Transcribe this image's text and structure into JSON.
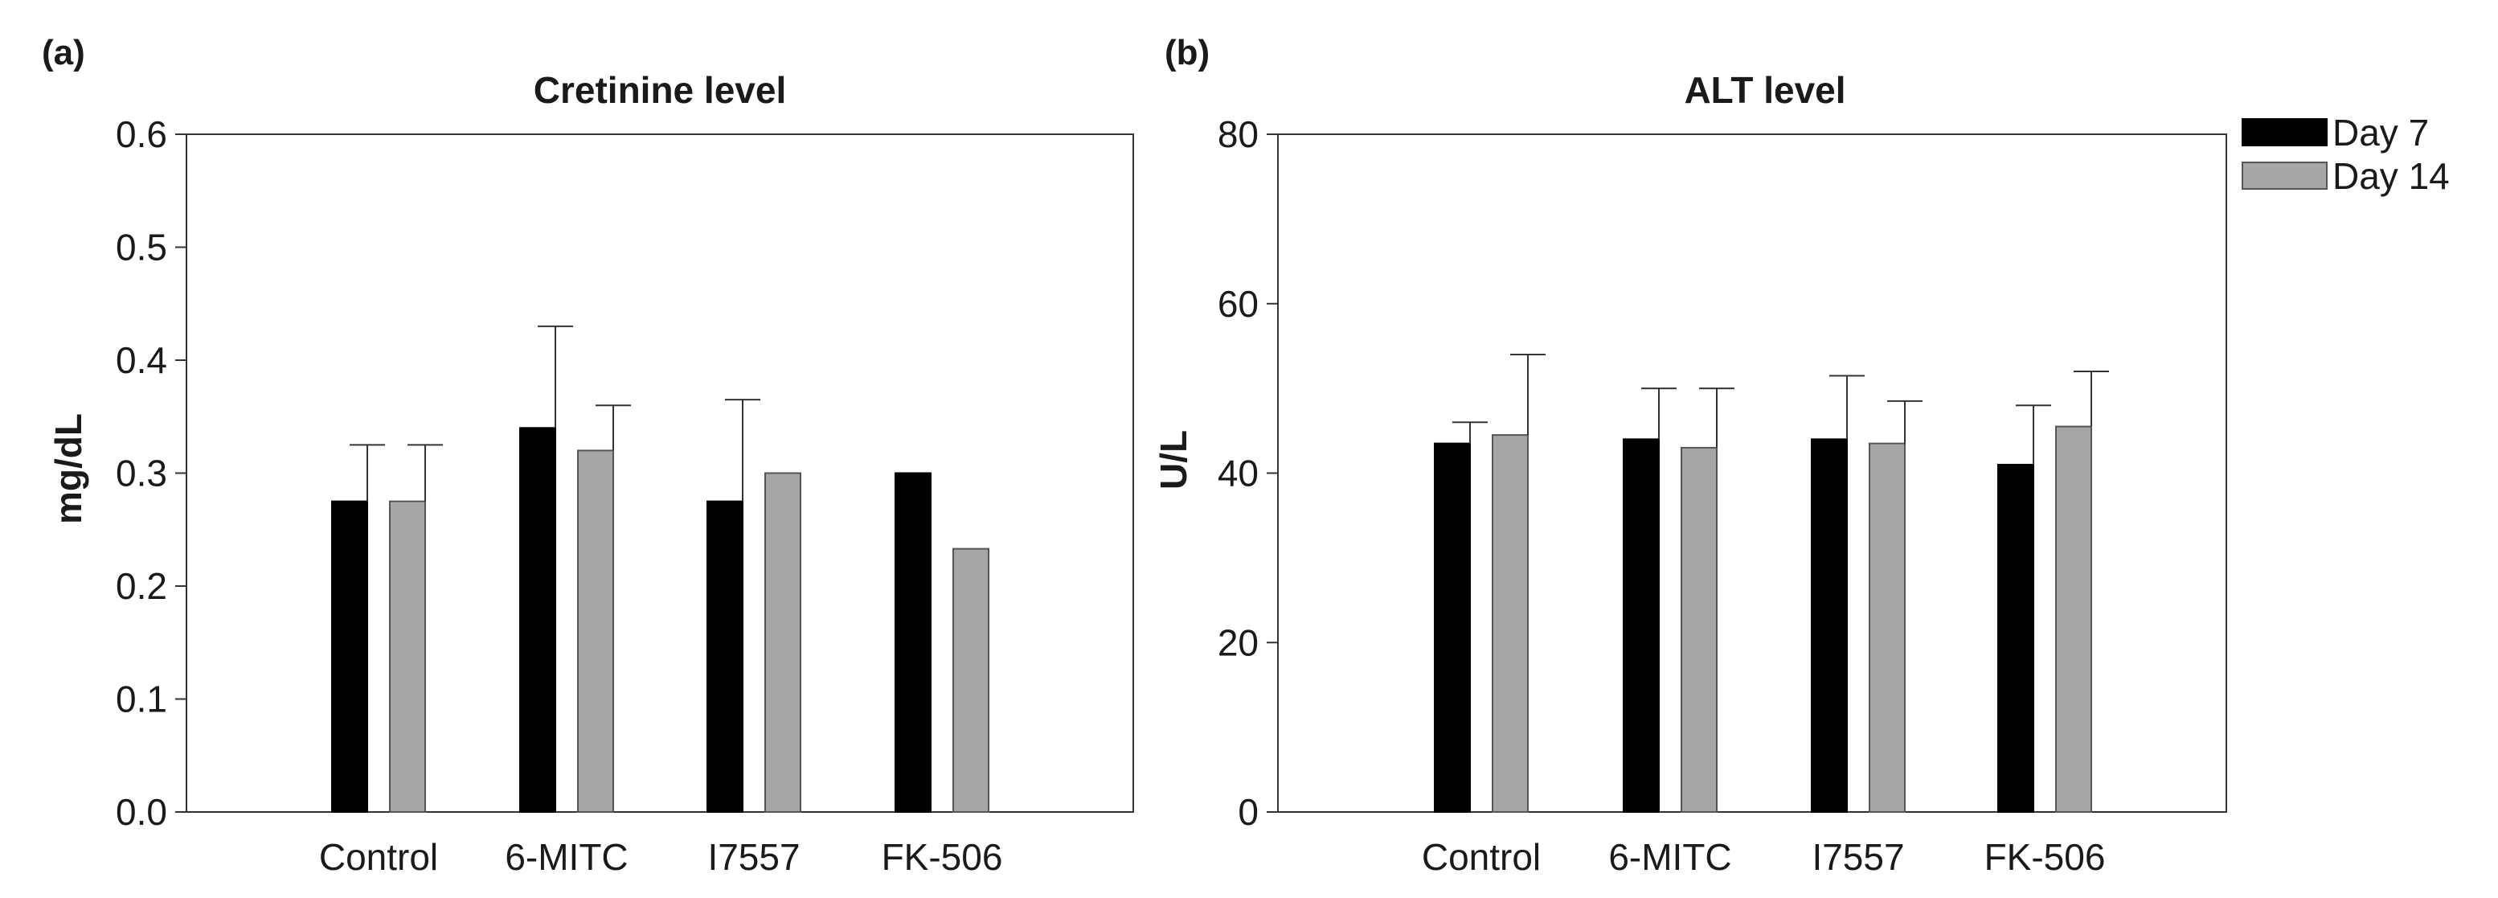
{
  "chart_data": [
    {
      "type": "bar",
      "panel_label": "(a)",
      "title": "Cretinine level",
      "xlabel": "",
      "ylabel": "mg/dL",
      "categories": [
        "Control",
        "6-MITC",
        "I7557",
        "FK-506"
      ],
      "ylim": [
        0,
        0.6
      ],
      "yticks": [
        "0.0",
        "0.1",
        "0.2",
        "0.3",
        "0.4",
        "0.5",
        "0.6"
      ],
      "grid": false,
      "series": [
        {
          "name": "Day 7",
          "color": "#000000",
          "values": [
            0.275,
            0.34,
            0.275,
            0.3
          ],
          "errors": [
            0.05,
            0.09,
            0.09,
            0
          ]
        },
        {
          "name": "Day 14",
          "color": "#a6a6a6",
          "values": [
            0.275,
            0.32,
            0.3,
            0.233
          ],
          "errors": [
            0.05,
            0.04,
            0,
            0
          ]
        }
      ]
    },
    {
      "type": "bar",
      "panel_label": "(b)",
      "title": "ALT level",
      "xlabel": "",
      "ylabel": "U/L",
      "categories": [
        "Control",
        "6-MITC",
        "I7557",
        "FK-506"
      ],
      "ylim": [
        0,
        80
      ],
      "yticks": [
        "0",
        "20",
        "40",
        "60",
        "80"
      ],
      "grid": false,
      "legend_position": "top-right",
      "series": [
        {
          "name": "Day 7",
          "color": "#000000",
          "values": [
            43.5,
            44,
            44,
            41
          ],
          "errors": [
            2.5,
            6,
            7.5,
            7
          ]
        },
        {
          "name": "Day 14",
          "color": "#a6a6a6",
          "values": [
            44.5,
            43,
            43.5,
            45.5
          ],
          "errors": [
            9.5,
            7,
            5,
            6.5
          ]
        }
      ]
    }
  ],
  "legend": {
    "items": [
      {
        "label": "Day 7",
        "color": "#000000"
      },
      {
        "label": "Day 14",
        "color": "#a6a6a6"
      }
    ]
  }
}
